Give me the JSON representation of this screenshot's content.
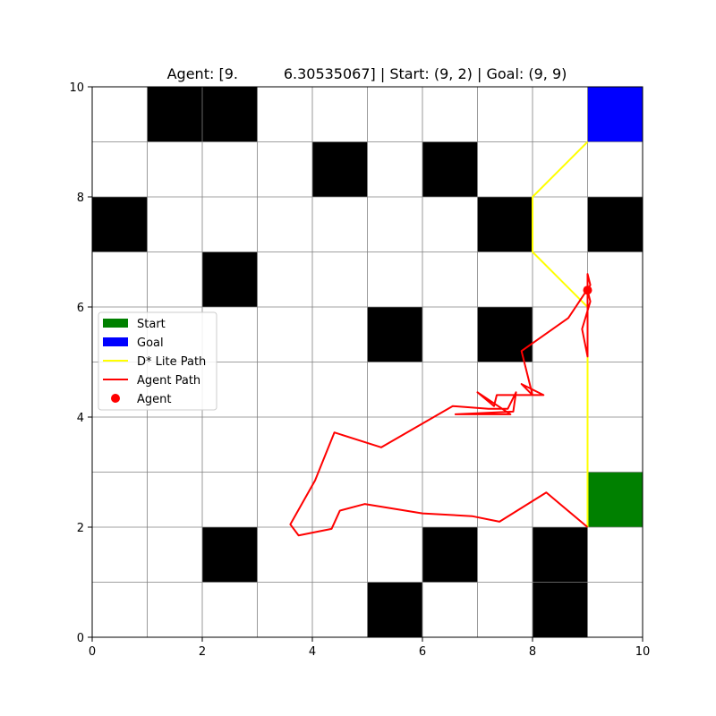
{
  "chart_data": {
    "type": "grid-path",
    "title": "Agent: [9.          6.30535067] | Start: (9, 2) | Goal: (9, 9)",
    "xlim": [
      0,
      10
    ],
    "ylim": [
      0,
      10
    ],
    "x_ticks": [
      0,
      2,
      4,
      6,
      8,
      10
    ],
    "y_ticks": [
      0,
      2,
      4,
      6,
      8,
      10
    ],
    "grid": true,
    "obstacles": [
      [
        1,
        9
      ],
      [
        2,
        9
      ],
      [
        4,
        8
      ],
      [
        6,
        8
      ],
      [
        0,
        7
      ],
      [
        7,
        7
      ],
      [
        9,
        7
      ],
      [
        2,
        6
      ],
      [
        5,
        5
      ],
      [
        7,
        5
      ],
      [
        2,
        1
      ],
      [
        6,
        1
      ],
      [
        8,
        1
      ],
      [
        5,
        0
      ],
      [
        8,
        0
      ]
    ],
    "start": [
      9,
      2
    ],
    "goal": [
      9,
      9
    ],
    "dstar_path": [
      [
        9,
        2
      ],
      [
        9,
        5
      ],
      [
        9,
        6
      ],
      [
        8,
        7
      ],
      [
        8,
        8
      ],
      [
        9,
        9
      ]
    ],
    "agent_path": [
      [
        9.0,
        2.0
      ],
      [
        8.25,
        2.63
      ],
      [
        7.4,
        2.1
      ],
      [
        6.9,
        2.2
      ],
      [
        6.0,
        2.25
      ],
      [
        4.95,
        2.42
      ],
      [
        4.5,
        2.3
      ],
      [
        4.35,
        1.97
      ],
      [
        3.75,
        1.85
      ],
      [
        3.6,
        2.05
      ],
      [
        4.05,
        2.85
      ],
      [
        4.4,
        3.72
      ],
      [
        5.25,
        3.45
      ],
      [
        6.55,
        4.2
      ],
      [
        7.2,
        4.15
      ],
      [
        7.55,
        4.15
      ],
      [
        7.7,
        4.45
      ],
      [
        7.65,
        4.1
      ],
      [
        6.6,
        4.05
      ],
      [
        7.6,
        4.05
      ],
      [
        7.0,
        4.45
      ],
      [
        7.3,
        4.2
      ],
      [
        7.35,
        4.4
      ],
      [
        7.9,
        4.4
      ],
      [
        8.2,
        4.4
      ],
      [
        7.8,
        4.6
      ],
      [
        8.0,
        4.4
      ],
      [
        7.8,
        5.2
      ],
      [
        8.65,
        5.8
      ],
      [
        9.05,
        6.4
      ],
      [
        9.0,
        6.6
      ],
      [
        9.0,
        5.9
      ],
      [
        9.0,
        5.1
      ],
      [
        8.9,
        5.6
      ],
      [
        9.05,
        6.1
      ],
      [
        9.0,
        6.3
      ]
    ],
    "agent_position": [
      9.0,
      6.30535067
    ],
    "colors": {
      "start": "#008000",
      "goal": "#0000ff",
      "obstacle": "#000000",
      "dstar": "#ffff00",
      "agent_path": "#ff0000",
      "agent": "#ff0000",
      "grid": "#808080"
    },
    "legend": {
      "placement": "center-left",
      "entries": [
        {
          "label": "Start",
          "kind": "patch",
          "color": "#008000"
        },
        {
          "label": "Goal",
          "kind": "patch",
          "color": "#0000ff"
        },
        {
          "label": "D* Lite Path",
          "kind": "line",
          "color": "#ffff00"
        },
        {
          "label": "Agent Path",
          "kind": "line",
          "color": "#ff0000"
        },
        {
          "label": "Agent",
          "kind": "marker",
          "color": "#ff0000"
        }
      ]
    }
  }
}
